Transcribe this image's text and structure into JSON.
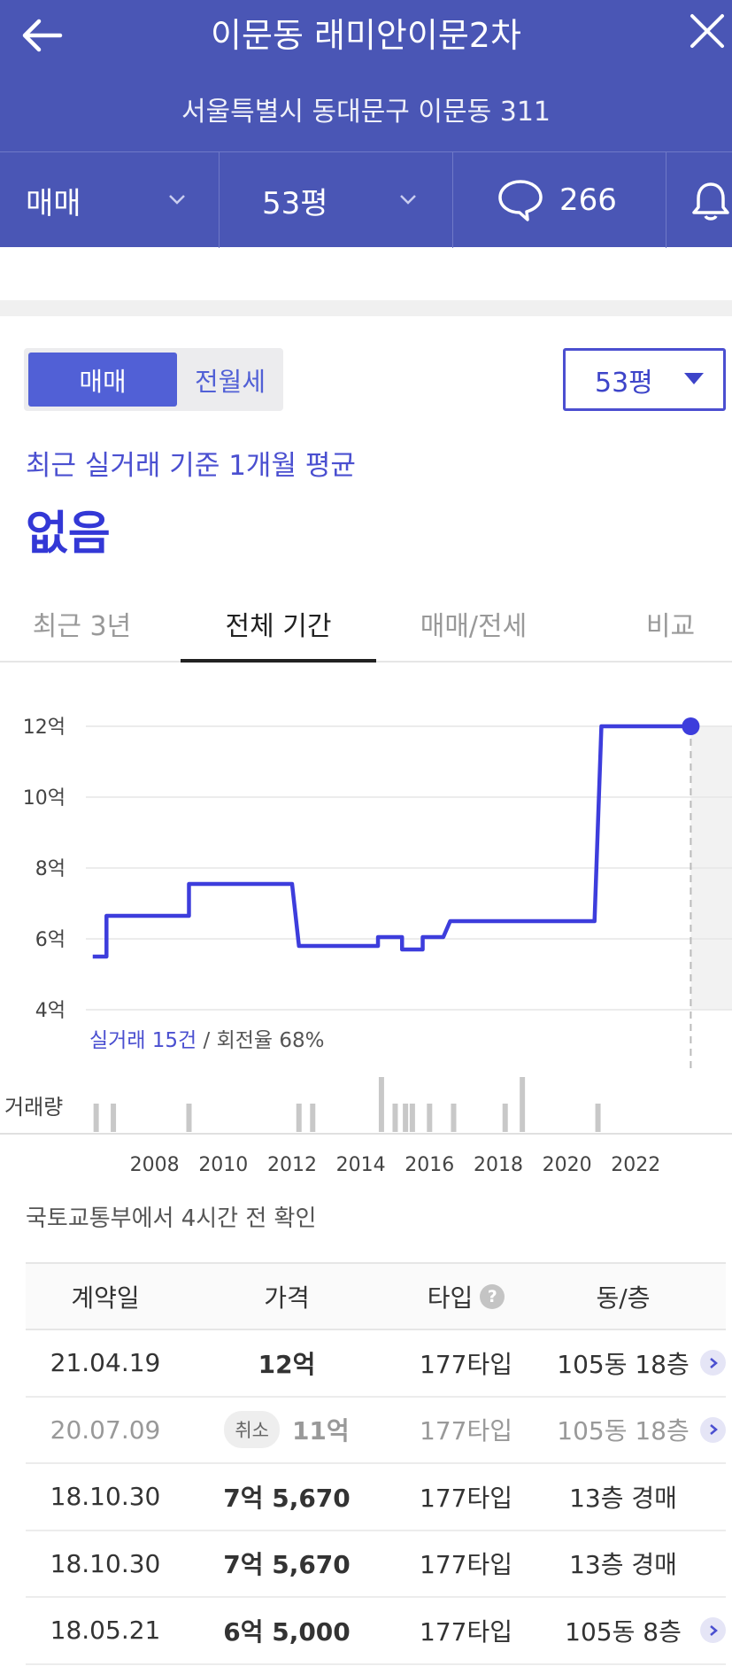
{
  "header": {
    "title": "이문동 래미안이문2차",
    "address": "서울특별시 동대문구 이문동 311",
    "filters": {
      "trade_type": "매매",
      "size": "53평",
      "comment_count": "266"
    }
  },
  "toggle": {
    "active": "매매",
    "inactive": "전월세"
  },
  "size_select": {
    "value": "53평"
  },
  "average": {
    "label": "최근 실거래 기준 1개월 평균",
    "value": "없음"
  },
  "tabs": [
    {
      "label": "최근 3년",
      "active": false
    },
    {
      "label": "전체 기간",
      "active": true
    },
    {
      "label": "매매/전세",
      "active": false
    },
    {
      "label": "비교",
      "active": false
    }
  ],
  "chart_data": {
    "type": "line",
    "y_unit": "억",
    "ylim": [
      4,
      12
    ],
    "y_ticks": [
      "12억",
      "10억",
      "8억",
      "6억",
      "4억"
    ],
    "x_ticks": [
      "2008",
      "2010",
      "2012",
      "2014",
      "2016",
      "2018",
      "2020",
      "2022"
    ],
    "series": [
      {
        "points": [
          {
            "x": 2006.2,
            "y": 5.5
          },
          {
            "x": 2006.6,
            "y": 5.5
          },
          {
            "x": 2006.6,
            "y": 6.65
          },
          {
            "x": 2009.0,
            "y": 6.65
          },
          {
            "x": 2009.0,
            "y": 7.55
          },
          {
            "x": 2012.0,
            "y": 7.55
          },
          {
            "x": 2012.2,
            "y": 5.8
          },
          {
            "x": 2014.5,
            "y": 5.8
          },
          {
            "x": 2014.5,
            "y": 6.05
          },
          {
            "x": 2015.2,
            "y": 6.05
          },
          {
            "x": 2015.2,
            "y": 5.7
          },
          {
            "x": 2015.8,
            "y": 5.7
          },
          {
            "x": 2015.8,
            "y": 6.05
          },
          {
            "x": 2016.4,
            "y": 6.05
          },
          {
            "x": 2016.6,
            "y": 6.5
          },
          {
            "x": 2020.8,
            "y": 6.5
          },
          {
            "x": 2021.0,
            "y": 12.0
          },
          {
            "x": 2023.6,
            "y": 12.0
          }
        ]
      }
    ],
    "volume_years": [
      2006.3,
      2006.8,
      2009.0,
      2012.2,
      2012.6,
      2014.6,
      2015.0,
      2015.3,
      2015.5,
      2016.0,
      2016.7,
      2018.2,
      2018.7,
      2020.9
    ],
    "volume_heights": [
      1,
      1,
      1,
      1,
      1,
      2,
      1,
      1,
      1,
      1,
      1,
      1,
      2,
      1
    ],
    "trade_count_label": "실거래 15건",
    "turnover_label": "/ 회전율 68%",
    "volume_label": "거래량"
  },
  "source": "국토교통부에서 4시간 전 확인",
  "table": {
    "headers": {
      "date": "계약일",
      "price": "가격",
      "type": "타입",
      "floor": "동/층",
      "help": "?"
    },
    "rows": [
      {
        "date": "21.04.19",
        "price": "12억",
        "type": "177타입",
        "floor": "105동 18층",
        "cancel": "",
        "arrow": true
      },
      {
        "date": "20.07.09",
        "price": "11억",
        "type": "177타입",
        "floor": "105동 18층",
        "cancel": "취소",
        "arrow": true
      },
      {
        "date": "18.10.30",
        "price": "7억 5,670",
        "type": "177타입",
        "floor": "13층 경매",
        "cancel": "",
        "arrow": false
      },
      {
        "date": "18.10.30",
        "price": "7억 5,670",
        "type": "177타입",
        "floor": "13층 경매",
        "cancel": "",
        "arrow": false
      },
      {
        "date": "18.05.21",
        "price": "6억 5,000",
        "type": "177타입",
        "floor": "105동 8층",
        "cancel": "",
        "arrow": true
      }
    ]
  },
  "colors": {
    "header_bg": "#4a56b5",
    "accent": "#3d3ddc"
  }
}
